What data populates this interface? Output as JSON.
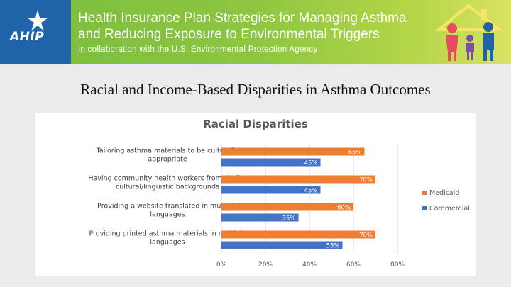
{
  "header": {
    "logo_text": "AHIP",
    "title_line1": "Health Insurance Plan Strategies for Managing Asthma",
    "title_line2": "and Reducing Exposure to Environmental Triggers",
    "subtitle": "In collaboration with the U.S. Environmental Protection Agency"
  },
  "slide": {
    "title": "Racial and Income-Based Disparities in Asthma Outcomes"
  },
  "colors": {
    "medicaid": "#ed7d31",
    "commercial": "#4472c4",
    "banner_blue": "#1f63a8",
    "banner_green": "#8dc641"
  },
  "chart_data": {
    "type": "bar",
    "orientation": "horizontal",
    "title": "Racial Disparities",
    "categories": [
      [
        "Tailoring asthma materials to be culturally",
        "appropriate"
      ],
      [
        "Having community health workers from similar",
        "cultural/linguistic backgrounds"
      ],
      [
        "Providing a website translated in multiple",
        "languages"
      ],
      [
        "Providing printed asthma materials in multiple",
        "languages"
      ]
    ],
    "series": [
      {
        "name": "Medicaid",
        "values": [
          65,
          70,
          60,
          70
        ]
      },
      {
        "name": "Commercial",
        "values": [
          45,
          45,
          35,
          55
        ]
      }
    ],
    "value_suffix": "%",
    "xlim": [
      0,
      80
    ],
    "xticks": [
      0,
      20,
      40,
      60,
      80
    ],
    "grid": true,
    "legend_position": "right"
  }
}
